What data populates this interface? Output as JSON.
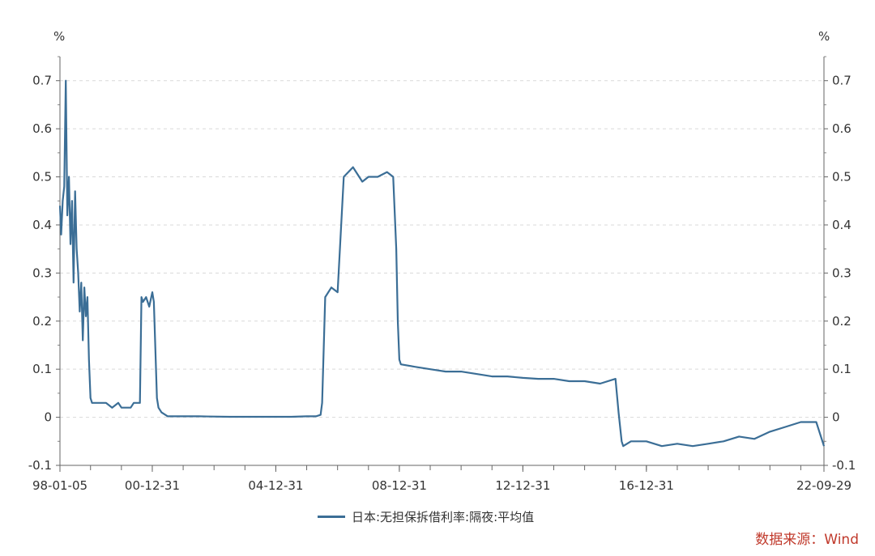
{
  "chart_data": {
    "type": "line",
    "title": "",
    "y_unit_left": "%",
    "y_unit_right": "%",
    "ylim": [
      -0.1,
      0.75
    ],
    "yticks": [
      "0.7",
      "0.6",
      "0.5",
      "0.4",
      "0.3",
      "0.2",
      "0.1",
      "0",
      "-0.1"
    ],
    "ytick_values": [
      0.7,
      0.6,
      0.5,
      0.4,
      0.3,
      0.2,
      0.1,
      0,
      -0.1
    ],
    "xlim": [
      1998.01,
      2022.75
    ],
    "xticks": [
      "98-01-05",
      "00-12-31",
      "04-12-31",
      "08-12-31",
      "12-12-31",
      "16-12-31",
      "22-09-29"
    ],
    "xtick_values": [
      1998.01,
      2001.0,
      2005.0,
      2009.0,
      2013.0,
      2017.0,
      2022.75
    ],
    "grid": true,
    "legend_position": "bottom",
    "series": [
      {
        "name": "日本:无担保拆借利率:隔夜:平均值",
        "color": "#3B6E96",
        "x": [
          1998.01,
          1998.05,
          1998.1,
          1998.15,
          1998.2,
          1998.25,
          1998.3,
          1998.35,
          1998.4,
          1998.45,
          1998.5,
          1998.55,
          1998.6,
          1998.65,
          1998.7,
          1998.75,
          1998.8,
          1998.85,
          1998.9,
          1998.95,
          1999.0,
          1999.05,
          1999.1,
          1999.15,
          1999.2,
          1999.3,
          1999.5,
          1999.7,
          1999.9,
          2000.0,
          2000.1,
          2000.2,
          2000.3,
          2000.4,
          2000.5,
          2000.6,
          2000.65,
          2000.7,
          2000.8,
          2000.9,
          2001.0,
          2001.05,
          2001.1,
          2001.15,
          2001.2,
          2001.3,
          2001.5,
          2001.8,
          2002.5,
          2003.5,
          2004.5,
          2005.5,
          2006.0,
          2006.3,
          2006.45,
          2006.5,
          2006.6,
          2006.8,
          2007.0,
          2007.2,
          2007.5,
          2007.8,
          2008.0,
          2008.3,
          2008.6,
          2008.8,
          2008.9,
          2008.95,
          2009.0,
          2009.05,
          2009.5,
          2010.0,
          2010.5,
          2011.0,
          2011.5,
          2012.0,
          2012.5,
          2013.0,
          2013.5,
          2014.0,
          2014.5,
          2015.0,
          2015.5,
          2016.0,
          2016.1,
          2016.2,
          2016.25,
          2016.5,
          2017.0,
          2017.5,
          2018.0,
          2018.5,
          2019.0,
          2019.5,
          2020.0,
          2020.5,
          2021.0,
          2021.5,
          2022.0,
          2022.5,
          2022.75
        ],
        "values": [
          0.44,
          0.38,
          0.45,
          0.48,
          0.7,
          0.42,
          0.5,
          0.36,
          0.45,
          0.28,
          0.47,
          0.35,
          0.3,
          0.22,
          0.28,
          0.16,
          0.27,
          0.21,
          0.25,
          0.12,
          0.04,
          0.03,
          0.03,
          0.03,
          0.03,
          0.03,
          0.03,
          0.02,
          0.03,
          0.02,
          0.02,
          0.02,
          0.02,
          0.03,
          0.03,
          0.03,
          0.25,
          0.24,
          0.25,
          0.23,
          0.26,
          0.24,
          0.14,
          0.04,
          0.02,
          0.01,
          0.002,
          0.002,
          0.002,
          0.001,
          0.001,
          0.001,
          0.002,
          0.002,
          0.005,
          0.03,
          0.25,
          0.27,
          0.26,
          0.5,
          0.52,
          0.49,
          0.5,
          0.5,
          0.51,
          0.5,
          0.35,
          0.2,
          0.12,
          0.11,
          0.105,
          0.1,
          0.095,
          0.095,
          0.09,
          0.085,
          0.085,
          0.082,
          0.08,
          0.08,
          0.075,
          0.075,
          0.07,
          0.08,
          0.01,
          -0.05,
          -0.06,
          -0.05,
          -0.05,
          -0.06,
          -0.055,
          -0.06,
          -0.055,
          -0.05,
          -0.04,
          -0.045,
          -0.03,
          -0.02,
          -0.01,
          -0.01,
          -0.06
        ]
      }
    ]
  },
  "legend": {
    "label": "日本:无担保拆借利率:隔夜:平均值"
  },
  "source": {
    "text": "数据来源：Wind",
    "color": "#C0392B"
  }
}
